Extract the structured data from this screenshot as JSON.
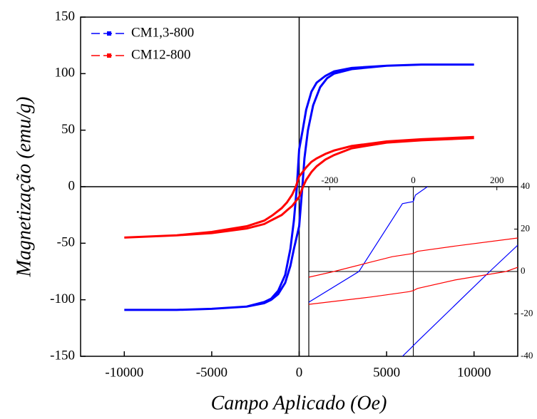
{
  "chart_data": [
    {
      "type": "line",
      "xlabel": "Campo Aplicado (Oe)",
      "ylabel": "Magnetização (emu/g)",
      "xlim": [
        -12500,
        12500
      ],
      "xticks": [
        -10000,
        -5000,
        0,
        5000,
        10000
      ],
      "ylim": [
        -150,
        150
      ],
      "yticks": [
        -150,
        -100,
        -50,
        0,
        50,
        100,
        150
      ],
      "zero_lines": true,
      "legend": "upper left",
      "series": [
        {
          "name": "CM1,3-800",
          "color": "#0000ff",
          "x": [
            10000,
            7000,
            5000,
            3000,
            2000,
            1500,
            1000,
            700,
            400,
            200,
            0,
            -130,
            -300,
            -500,
            -800,
            -1200,
            -1600,
            -2000,
            -3000,
            -5000,
            -7000,
            -10000,
            -10000,
            -7000,
            -5000,
            -3000,
            -2000,
            -1600,
            -1200,
            -800,
            -500,
            -300,
            0,
            183,
            300,
            500,
            800,
            1200,
            1600,
            2000,
            3000,
            5000,
            7000,
            10000
          ],
          "values": [
            108,
            108,
            107,
            105,
            102,
            98,
            92,
            84,
            68,
            50,
            33,
            0,
            -30,
            -55,
            -78,
            -92,
            -99,
            -102,
            -106,
            -108,
            -109,
            -109,
            -109,
            -109,
            -108,
            -106,
            -103,
            -100,
            -95,
            -85,
            -70,
            -55,
            -35,
            0,
            25,
            50,
            72,
            88,
            96,
            100,
            104,
            107,
            108,
            108
          ]
        },
        {
          "name": "CM12-800",
          "color": "#ff0000",
          "x": [
            10000,
            7000,
            5000,
            3000,
            2000,
            1500,
            1000,
            700,
            400,
            200,
            0,
            -190,
            -400,
            -700,
            -1000,
            -1500,
            -2000,
            -3000,
            -5000,
            -7000,
            -10000,
            -10000,
            -7000,
            -5000,
            -3000,
            -2000,
            -1500,
            -1000,
            -700,
            -400,
            -200,
            0,
            222,
            400,
            700,
            1000,
            1500,
            2000,
            3000,
            5000,
            7000,
            10000
          ],
          "values": [
            44,
            42,
            40,
            36,
            32,
            29,
            25,
            22,
            17,
            13,
            9,
            0,
            -7,
            -14,
            -19,
            -25,
            -30,
            -35,
            -40,
            -43,
            -45,
            -45,
            -43,
            -41,
            -37,
            -33,
            -29,
            -25,
            -21,
            -17,
            -13,
            -9,
            0,
            6,
            13,
            18,
            24,
            28,
            34,
            39,
            41,
            43
          ]
        }
      ]
    },
    {
      "type": "line",
      "xlim": [
        -250,
        250
      ],
      "xticks": [
        -200,
        0,
        200
      ],
      "ylim": [
        -40,
        40
      ],
      "yticks": [
        -40,
        -20,
        0,
        20,
        40
      ],
      "zero_lines": true,
      "series": [
        {
          "color": "#0000ff",
          "x": [
            -250,
            -130,
            -26,
            0,
            5,
            34
          ],
          "values": [
            -14.5,
            0,
            32,
            33,
            36,
            40
          ]
        },
        {
          "color": "#0000ff",
          "x": [
            -26,
            -5,
            0,
            10,
            183,
            250
          ],
          "values": [
            -40,
            -36,
            -35,
            -33,
            0,
            12.4
          ]
        },
        {
          "color": "#ff0000",
          "x": [
            -250,
            -190,
            -100,
            -50,
            0,
            10,
            100,
            250
          ],
          "values": [
            -2.7,
            0,
            4.5,
            7,
            8.5,
            9.5,
            12,
            15.8
          ]
        },
        {
          "color": "#ff0000",
          "x": [
            -250,
            -100,
            -10,
            0,
            10,
            100,
            222,
            250
          ],
          "values": [
            -15.5,
            -12,
            -9.5,
            -9,
            -8,
            -4,
            0,
            2
          ]
        }
      ]
    }
  ]
}
